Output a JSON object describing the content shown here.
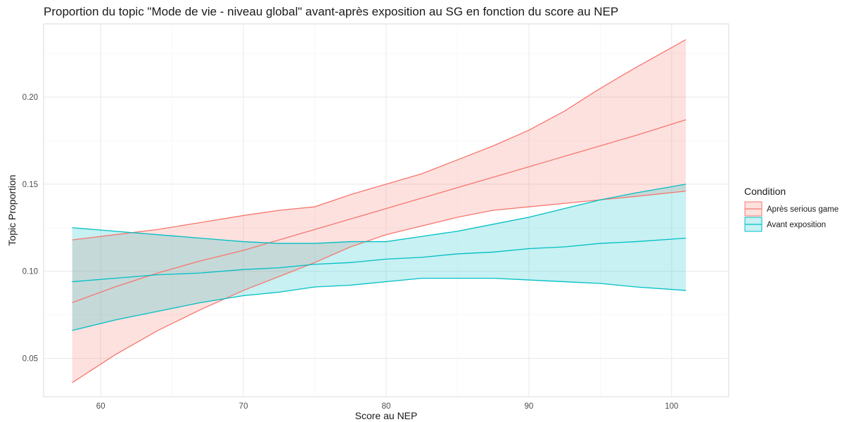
{
  "chart_data": {
    "type": "line",
    "title": "Proportion du topic \"Mode de vie - niveau global\" avant-après exposition au SG en fonction du score au NEP",
    "xlabel": "Score au NEP",
    "ylabel": "Topic Proportion",
    "xlim": [
      56,
      104
    ],
    "ylim": [
      0.028,
      0.242
    ],
    "x_ticks": [
      60,
      70,
      80,
      90,
      100
    ],
    "y_ticks": [
      0.05,
      0.1,
      0.15,
      0.2
    ],
    "x_tick_labels": [
      "60",
      "70",
      "80",
      "90",
      "100"
    ],
    "y_tick_labels": [
      "0.05",
      "0.10",
      "0.15",
      "0.20"
    ],
    "grid": true,
    "legend": {
      "title": "Condition",
      "position": "right"
    },
    "series": [
      {
        "name": "Après serious game",
        "color": "#F8766D",
        "fill_opacity": 0.22,
        "x": [
          58,
          61,
          64,
          67,
          70,
          72.5,
          75,
          77.5,
          80,
          82.5,
          85,
          87.5,
          90,
          92.5,
          95,
          97.5,
          101
        ],
        "y": [
          0.082,
          0.091,
          0.099,
          0.106,
          0.112,
          0.118,
          0.124,
          0.13,
          0.136,
          0.142,
          0.148,
          0.154,
          0.16,
          0.166,
          0.172,
          0.178,
          0.187
        ],
        "lower": [
          0.036,
          0.052,
          0.066,
          0.078,
          0.089,
          0.097,
          0.105,
          0.114,
          0.121,
          0.126,
          0.131,
          0.135,
          0.137,
          0.139,
          0.141,
          0.143,
          0.146
        ],
        "upper": [
          0.118,
          0.121,
          0.124,
          0.128,
          0.132,
          0.135,
          0.137,
          0.144,
          0.15,
          0.156,
          0.164,
          0.172,
          0.181,
          0.192,
          0.205,
          0.217,
          0.233
        ]
      },
      {
        "name": "Avant exposition",
        "color": "#00BFC4",
        "fill_opacity": 0.22,
        "x": [
          58,
          61,
          64,
          67,
          70,
          72.5,
          75,
          77.5,
          80,
          82.5,
          85,
          87.5,
          90,
          92.5,
          95,
          97.5,
          101
        ],
        "y": [
          0.094,
          0.096,
          0.098,
          0.099,
          0.101,
          0.102,
          0.104,
          0.105,
          0.107,
          0.108,
          0.11,
          0.111,
          0.113,
          0.114,
          0.116,
          0.117,
          0.119
        ],
        "lower": [
          0.066,
          0.072,
          0.077,
          0.082,
          0.086,
          0.088,
          0.091,
          0.092,
          0.094,
          0.096,
          0.096,
          0.096,
          0.095,
          0.094,
          0.093,
          0.091,
          0.089
        ],
        "upper": [
          0.125,
          0.123,
          0.121,
          0.119,
          0.117,
          0.116,
          0.116,
          0.117,
          0.117,
          0.12,
          0.123,
          0.127,
          0.131,
          0.136,
          0.141,
          0.145,
          0.15
        ]
      }
    ]
  }
}
